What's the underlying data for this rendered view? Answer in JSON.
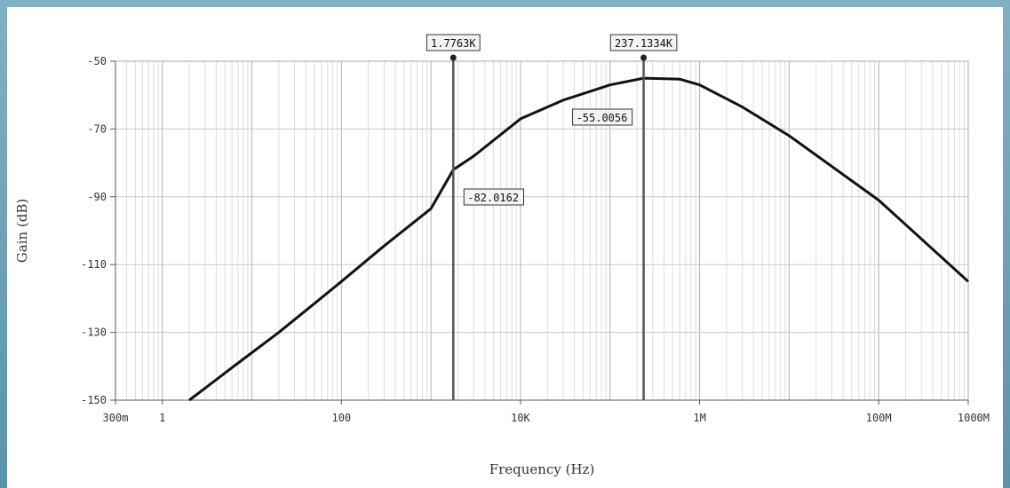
{
  "chart_data": {
    "type": "line",
    "title": "",
    "xlabel": "Frequency (Hz)",
    "ylabel": "Gain (dB)",
    "x_scale": "log",
    "xlim": [
      0.3,
      1000000000
    ],
    "ylim": [
      -150,
      -50
    ],
    "grid": true,
    "y_ticks": [
      -50,
      -70,
      -90,
      -110,
      -130,
      -150
    ],
    "y_tick_labels": [
      "-50",
      "-70",
      "-90",
      "-110",
      "-130",
      "-150"
    ],
    "x_ticks": [
      0.3,
      1,
      100,
      10000,
      1000000,
      100000000,
      1000000000
    ],
    "x_tick_labels": [
      "300m",
      "1",
      "100",
      "10K",
      "1M",
      "100M",
      "1000M"
    ],
    "series": [
      {
        "x": [
          2,
          3,
          5,
          10,
          20,
          50,
          100,
          300,
          1000,
          1776.3,
          3000,
          10000,
          30000,
          100000,
          237133.4,
          600000,
          1000000,
          3000000,
          10000000,
          100000000,
          1000000000
        ],
        "y": [
          -150,
          -146.5,
          -142,
          -136,
          -130,
          -121.5,
          -115,
          -104.5,
          -93.5,
          -82.0162,
          -78,
          -67,
          -61.5,
          -57,
          -55.0056,
          -55.3,
          -57,
          -63.5,
          -72,
          -91,
          -115
        ]
      }
    ],
    "cursors": [
      {
        "x": 1776.3,
        "x_label": "1.7763K",
        "y_label": "-82.0162"
      },
      {
        "x": 237133.4,
        "x_label": "237.1334K",
        "y_label": "-55.0056"
      }
    ]
  },
  "colors": {
    "curve": "#111111",
    "grid": "#c8c8c8",
    "cursor": "#555555"
  }
}
